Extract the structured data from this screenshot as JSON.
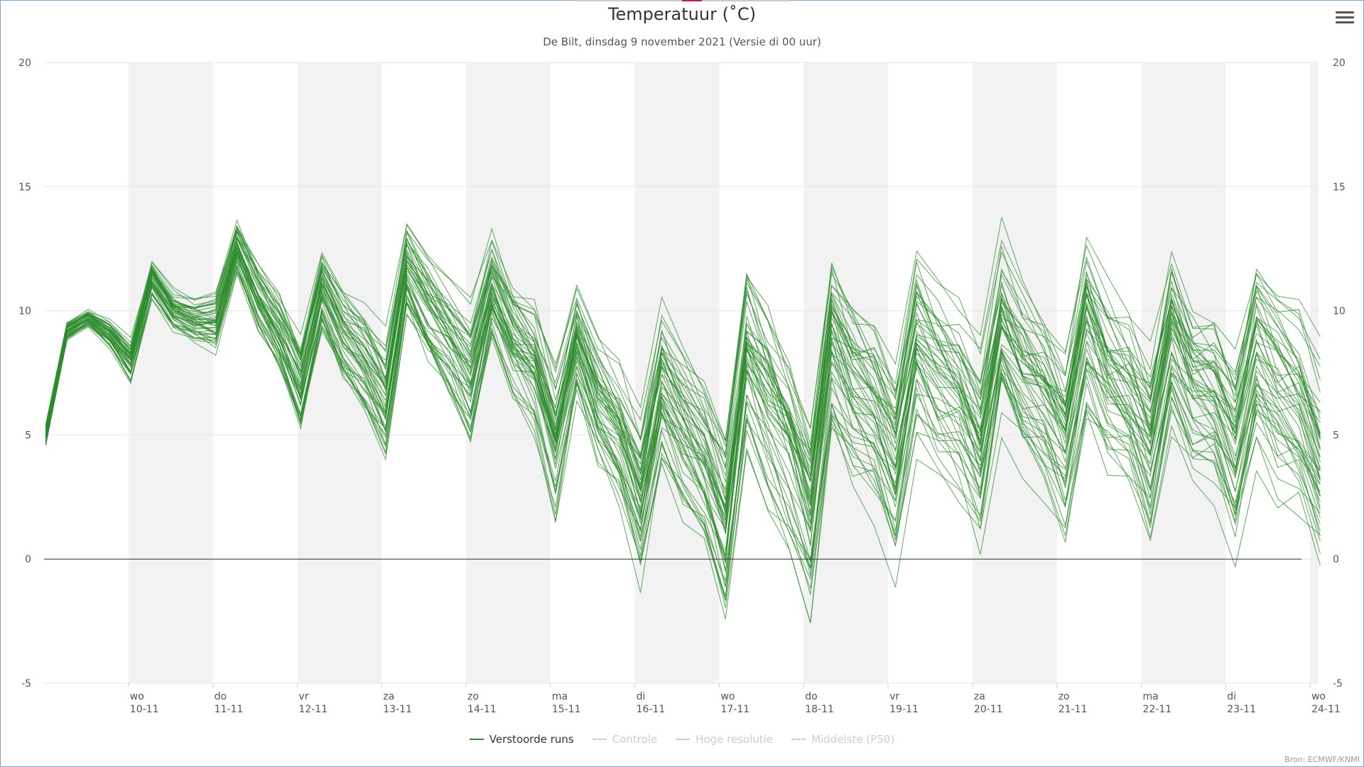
{
  "title": "Temperatuur (˚C)",
  "subtitle": "De Bilt, dinsdag 9 november 2021 (Versie di 00 uur)",
  "credits": "Bron: ECMWF/KNMI",
  "colors": {
    "ensemble": "#2e8b2e",
    "band": "#f2f2f2",
    "grid": "#e6e6e6",
    "zero_line": "#333333",
    "legend_inactive": "#cccccc"
  },
  "legend": [
    {
      "label": "Verstoorde runs",
      "active": true,
      "style": "solid"
    },
    {
      "label": "Controle",
      "active": false,
      "style": "dashed"
    },
    {
      "label": "Hoge resolutie",
      "active": false,
      "style": "solid"
    },
    {
      "label": "Middelste (P50)",
      "active": false,
      "style": "dashed"
    }
  ],
  "chart_data": {
    "type": "line",
    "title": "Temperatuur (˚C)",
    "subtitle": "De Bilt, dinsdag 9 november 2021 (Versie di 00 uur)",
    "ylim": [
      -5,
      20
    ],
    "yticks": [
      -5,
      0,
      5,
      10,
      15,
      20
    ],
    "x_unit": "6-hourly steps from 2021-11-09 00:00",
    "x_range_days": [
      9.0,
      24.1
    ],
    "day_ticks": [
      {
        "day": "wo",
        "date": "10-11"
      },
      {
        "day": "do",
        "date": "11-11"
      },
      {
        "day": "vr",
        "date": "12-11"
      },
      {
        "day": "za",
        "date": "13-11"
      },
      {
        "day": "zo",
        "date": "14-11"
      },
      {
        "day": "ma",
        "date": "15-11"
      },
      {
        "day": "di",
        "date": "16-11"
      },
      {
        "day": "wo",
        "date": "17-11"
      },
      {
        "day": "do",
        "date": "18-11"
      },
      {
        "day": "vr",
        "date": "19-11"
      },
      {
        "day": "za",
        "date": "20-11"
      },
      {
        "day": "zo",
        "date": "21-11"
      },
      {
        "day": "ma",
        "date": "22-11"
      },
      {
        "day": "di",
        "date": "23-11"
      },
      {
        "day": "wo",
        "date": "24-11"
      }
    ],
    "grid": true,
    "legend_position": "bottom",
    "ensemble_center": [
      5.0,
      9.2,
      9.7,
      9.1,
      8.0,
      11.3,
      10.0,
      9.6,
      9.5,
      12.5,
      10.5,
      9.0,
      7.0,
      10.8,
      9.0,
      8.0,
      6.5,
      11.8,
      10.2,
      9.0,
      7.5,
      11.0,
      9.0,
      8.0,
      5.0,
      9.0,
      6.5,
      5.0,
      2.5,
      7.0,
      5.5,
      4.0,
      1.5,
      8.5,
      6.5,
      4.5,
      2.0,
      8.8,
      7.0,
      6.0,
      4.0,
      9.0,
      7.5,
      6.5,
      4.5,
      9.2,
      7.5,
      6.5,
      4.8,
      9.5,
      7.5,
      6.5,
      4.5,
      9.0,
      7.0,
      6.5,
      4.5,
      8.5,
      6.8,
      6.0,
      4.0
    ],
    "ensemble_spread": [
      0.4,
      0.3,
      0.3,
      0.5,
      0.7,
      0.6,
      0.7,
      0.8,
      1.0,
      0.9,
      1.2,
      1.4,
      1.6,
      1.3,
      1.5,
      1.7,
      2.0,
      1.6,
      1.8,
      2.0,
      2.3,
      1.8,
      2.0,
      2.2,
      2.6,
      2.0,
      2.2,
      2.4,
      2.8,
      2.6,
      2.8,
      3.0,
      3.2,
      3.0,
      3.1,
      3.2,
      3.4,
      3.0,
      3.1,
      3.1,
      3.2,
      3.0,
      3.0,
      3.0,
      3.2,
      3.0,
      3.0,
      3.0,
      3.2,
      3.1,
      3.1,
      3.1,
      3.3,
      3.1,
      3.1,
      3.1,
      3.3,
      3.2,
      3.2,
      3.2,
      3.4
    ],
    "member_count": 50
  }
}
